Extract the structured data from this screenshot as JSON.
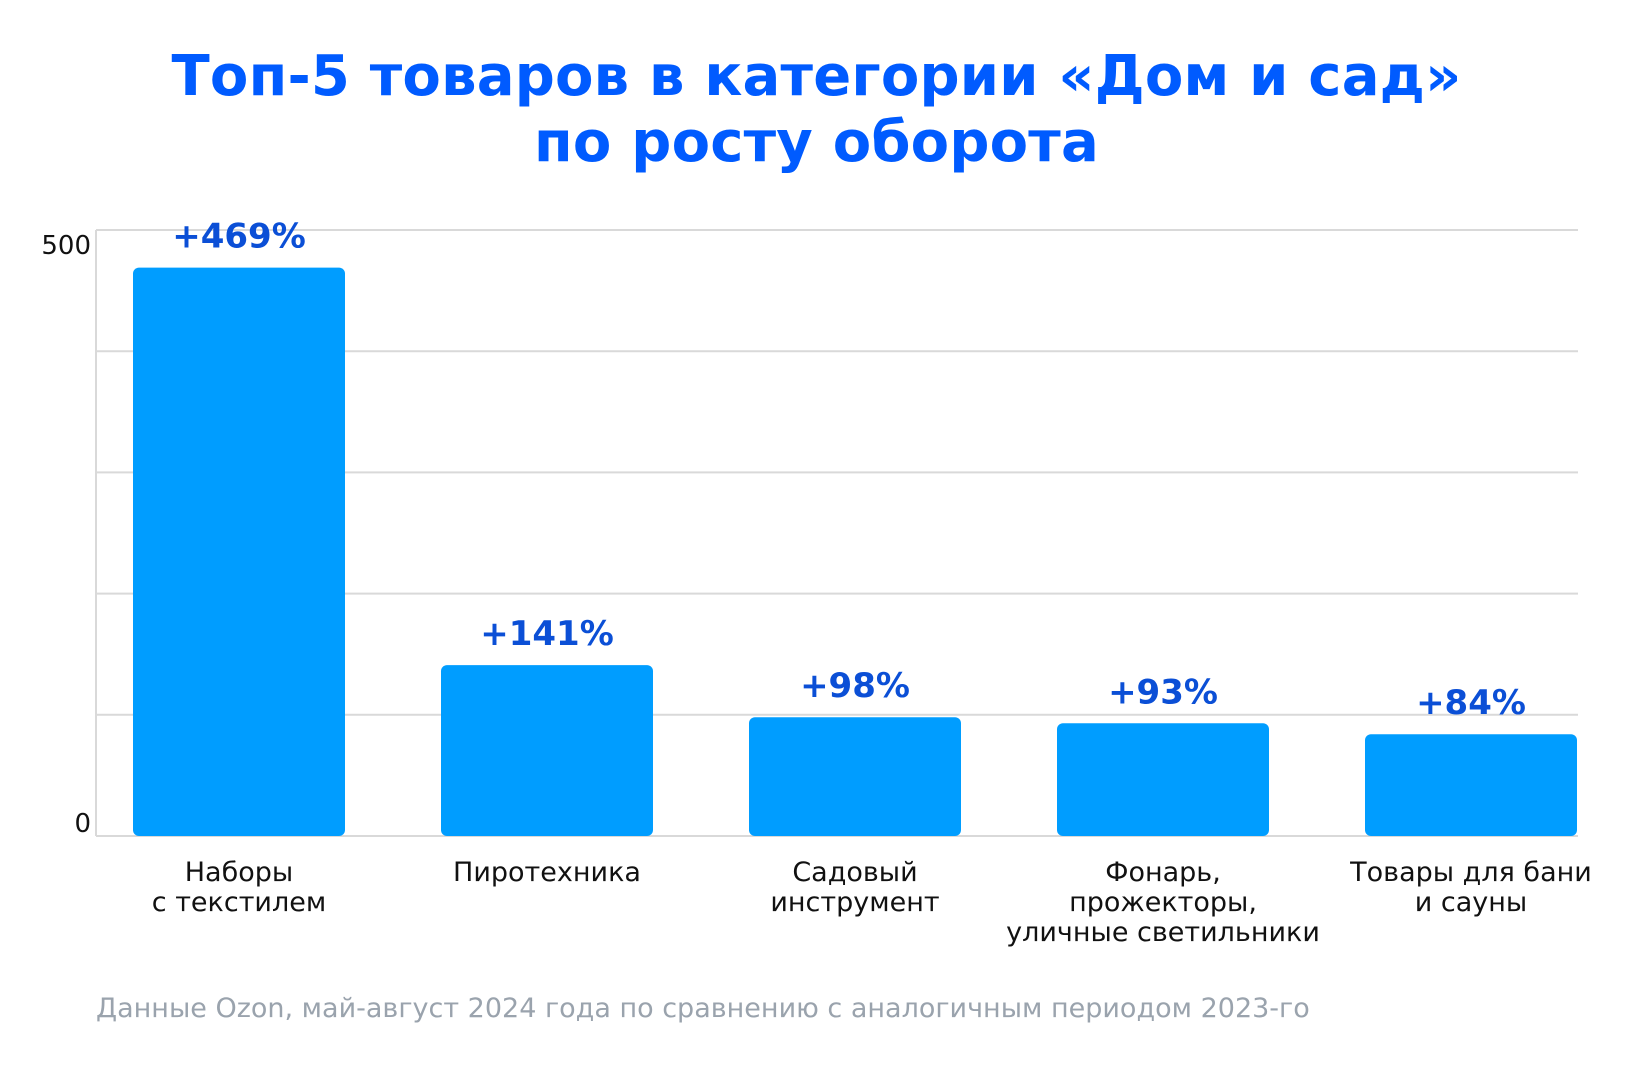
{
  "chart_data": {
    "type": "bar",
    "title_lines": [
      "Топ-5 товаров в категории «Дом и сад»",
      "по росту оборота"
    ],
    "categories": [
      [
        "Наборы",
        "с текстилем"
      ],
      [
        "Пиротехника"
      ],
      [
        "Садовый",
        "инструмент"
      ],
      [
        "Фонарь,",
        "прожекторы,",
        "уличные светильники"
      ],
      [
        "Товары для бани",
        "и сауны"
      ]
    ],
    "values": [
      469,
      141,
      98,
      93,
      84
    ],
    "data_labels": [
      "+469%",
      "+141%",
      "+98%",
      "+93%",
      "+84%"
    ],
    "ylim": [
      0,
      500
    ],
    "y_tick_labels": [
      "0",
      "500"
    ],
    "grid": true,
    "legend": "none",
    "colors": {
      "bar": "#009dff",
      "title": "#005bff",
      "data_label": "#0b4fd6",
      "grid": "#d9d9d9",
      "axis_text": "#111111",
      "source": "#9aa3ad"
    }
  },
  "footer": {
    "source": "Данные Ozon, май-август 2024 года по сравнению с аналогичным периодом 2023-го"
  }
}
